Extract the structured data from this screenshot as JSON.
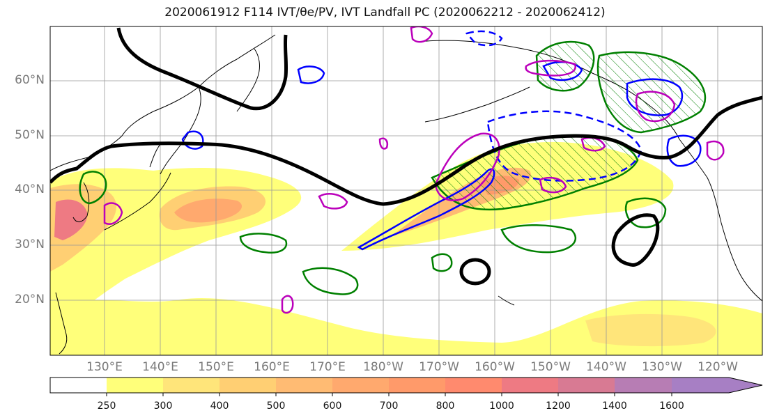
{
  "title": "2020061912 F114 IVT/θe/PV, IVT Landfall PC (2020062212 - 2020062412)",
  "latitude_labels": [
    "60°N",
    "50°N",
    "40°N",
    "30°N",
    "20°N"
  ],
  "longitude_labels": [
    "130°E",
    "140°E",
    "150°E",
    "160°E",
    "170°E",
    "180°W",
    "170°W",
    "160°W",
    "150°W",
    "140°W",
    "130°W",
    "120°W"
  ],
  "colorbar": {
    "tick_labels": [
      "250",
      "300",
      "400",
      "500",
      "600",
      "700",
      "800",
      "1000",
      "1200",
      "1400",
      "1600"
    ],
    "colors": [
      "#ffffff",
      "#ffff7a",
      "#ffe57a",
      "#ffcf73",
      "#ffbb73",
      "#ffa96e",
      "#ff9a6a",
      "#ff8a6e",
      "#ee7a83",
      "#d87a93",
      "#b77db4",
      "#a77fc4"
    ],
    "extend": "max"
  },
  "contours": {
    "pv_color": "#000000",
    "positive_color": "#0000ff",
    "negative_color": "#0000ff",
    "landfall_color": "#008000",
    "theta_color": "#bb00bb"
  }
}
